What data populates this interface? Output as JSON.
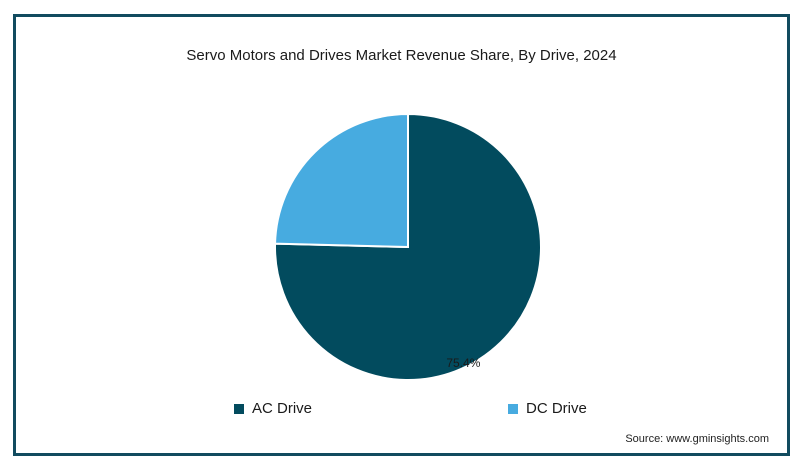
{
  "chart_data": {
    "type": "pie",
    "title": "Servo Motors and Drives Market Revenue Share, By Drive, 2024",
    "slices": [
      {
        "label": "AC Drive",
        "value": 75.4,
        "color": "#024b5e",
        "data_label": "75.4%"
      },
      {
        "label": "DC Drive",
        "value": 24.6,
        "color": "#47abe0",
        "data_label": ""
      }
    ],
    "legend_position": "bottom"
  },
  "legend": {
    "items": [
      {
        "label": "AC Drive",
        "color": "#024b5e"
      },
      {
        "label": "DC Drive",
        "color": "#47abe0"
      }
    ]
  },
  "source": "Source: www.gminsights.com"
}
